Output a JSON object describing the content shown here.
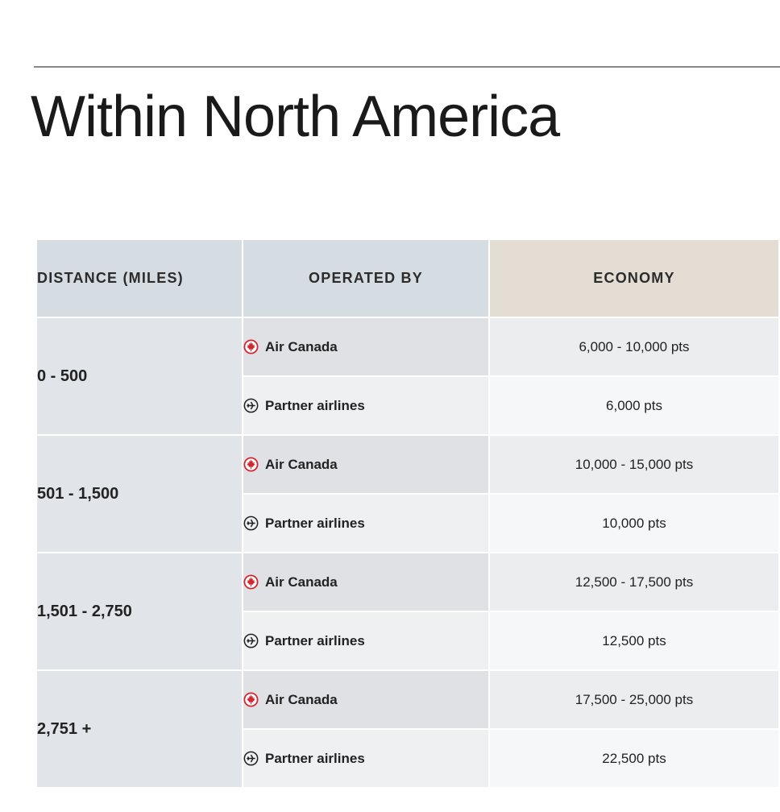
{
  "page": {
    "title": "Within North America"
  },
  "table": {
    "headers": {
      "distance": "DISTANCE (MILES)",
      "operated_by": "OPERATED BY",
      "economy": "ECONOMY"
    },
    "rows": [
      {
        "distance": "0 - 500",
        "options": [
          {
            "operator": "Air Canada",
            "icon": "maple-leaf-icon",
            "economy": "6,000 - 10,000 pts"
          },
          {
            "operator": "Partner airlines",
            "icon": "plane-circle-icon",
            "economy": "6,000 pts"
          }
        ]
      },
      {
        "distance": "501 - 1,500",
        "options": [
          {
            "operator": "Air Canada",
            "icon": "maple-leaf-icon",
            "economy": "10,000 - 15,000 pts"
          },
          {
            "operator": "Partner airlines",
            "icon": "plane-circle-icon",
            "economy": "10,000 pts"
          }
        ]
      },
      {
        "distance": "1,501 - 2,750",
        "options": [
          {
            "operator": "Air Canada",
            "icon": "maple-leaf-icon",
            "economy": "12,500 - 17,500 pts"
          },
          {
            "operator": "Partner airlines",
            "icon": "plane-circle-icon",
            "economy": "12,500 pts"
          }
        ]
      },
      {
        "distance": "2,751 +",
        "options": [
          {
            "operator": "Air Canada",
            "icon": "maple-leaf-icon",
            "economy": "17,500 - 25,000 pts"
          },
          {
            "operator": "Partner airlines",
            "icon": "plane-circle-icon",
            "economy": "22,500 pts"
          }
        ]
      }
    ]
  },
  "colors": {
    "air_canada_red": "#d22630",
    "header_grey": "#d6dde2",
    "header_economy": "#e3ddd4"
  }
}
